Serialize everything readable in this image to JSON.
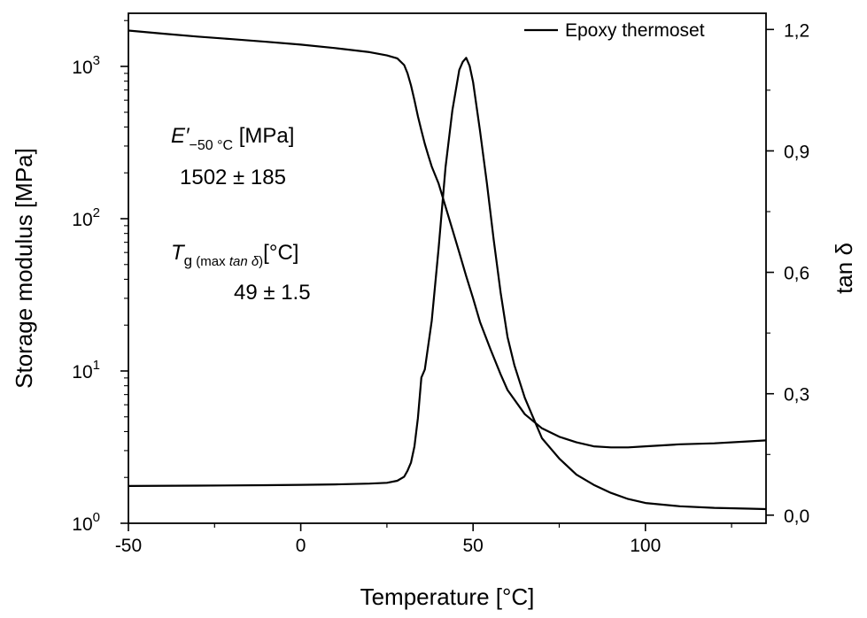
{
  "chart_data": {
    "type": "line",
    "xlabel": "Temperature [°C]",
    "ylabel_left": "Storage modulus [MPa]",
    "ylabel_right": "tan δ",
    "xlim": [
      -50,
      135
    ],
    "x_ticks": [
      -50,
      0,
      50,
      100
    ],
    "y_left_scale": "log",
    "y_left_lim": [
      1,
      2000
    ],
    "y_left_ticks": [
      {
        "value": 1,
        "base": "10",
        "exp": "0"
      },
      {
        "value": 10,
        "base": "10",
        "exp": "1"
      },
      {
        "value": 100,
        "base": "10",
        "exp": "2"
      },
      {
        "value": 1000,
        "base": "10",
        "exp": "3"
      }
    ],
    "y_right_lim": [
      -0.02,
      1.24
    ],
    "y_right_ticks": [
      "0,0",
      "0,3",
      "0,6",
      "0,9",
      "1,2"
    ],
    "y_right_tick_values": [
      0,
      0.3,
      0.6,
      0.9,
      1.2
    ],
    "legend": {
      "placement": "top-right",
      "entries": [
        "Epoxy thermoset"
      ]
    },
    "annotations": {
      "modulus": {
        "symbol": "E′",
        "subscript": "−50 °C",
        "unit": " [MPa]",
        "value": "1502 ± 185"
      },
      "tg": {
        "symbol": "T",
        "subscript_main": "g",
        "subscript_detail_pre": " (max ",
        "subscript_detail_italic": "tan δ",
        "subscript_detail_post": ")",
        "unit": "[°C]",
        "value": "49 ± 1.5"
      }
    },
    "series": [
      {
        "axis": "left",
        "x": [
          -50,
          -40,
          -30,
          -20,
          -10,
          0,
          10,
          20,
          25,
          28,
          30,
          31,
          32,
          33,
          34,
          35,
          36,
          37,
          38,
          40,
          42,
          44,
          46,
          48,
          50,
          52,
          55,
          58,
          60,
          65,
          70,
          75,
          80,
          85,
          90,
          95,
          100,
          105,
          110,
          120,
          130,
          135
        ],
        "y": [
          1720,
          1640,
          1570,
          1510,
          1450,
          1390,
          1320,
          1240,
          1180,
          1130,
          1020,
          900,
          750,
          600,
          470,
          380,
          310,
          260,
          220,
          170,
          120,
          85,
          60,
          42,
          30,
          21,
          14,
          9.5,
          7.5,
          5.2,
          4.2,
          3.7,
          3.4,
          3.2,
          3.15,
          3.15,
          3.2,
          3.25,
          3.3,
          3.35,
          3.45,
          3.5
        ]
      },
      {
        "axis": "right",
        "x": [
          -50,
          -30,
          -10,
          0,
          10,
          20,
          25,
          28,
          30,
          31,
          32,
          33,
          34,
          35,
          36,
          38,
          40,
          42,
          44,
          46,
          47,
          48,
          49,
          50,
          52,
          54,
          56,
          58,
          60,
          62,
          65,
          68,
          70,
          75,
          80,
          85,
          90,
          95,
          100,
          110,
          120,
          130,
          135
        ],
        "y": [
          0.072,
          0.073,
          0.074,
          0.075,
          0.076,
          0.078,
          0.08,
          0.085,
          0.095,
          0.11,
          0.13,
          0.17,
          0.24,
          0.34,
          0.36,
          0.48,
          0.66,
          0.86,
          1.0,
          1.1,
          1.12,
          1.13,
          1.11,
          1.07,
          0.95,
          0.82,
          0.68,
          0.55,
          0.44,
          0.37,
          0.29,
          0.23,
          0.19,
          0.14,
          0.1,
          0.075,
          0.055,
          0.04,
          0.03,
          0.022,
          0.018,
          0.016,
          0.015
        ]
      }
    ]
  }
}
